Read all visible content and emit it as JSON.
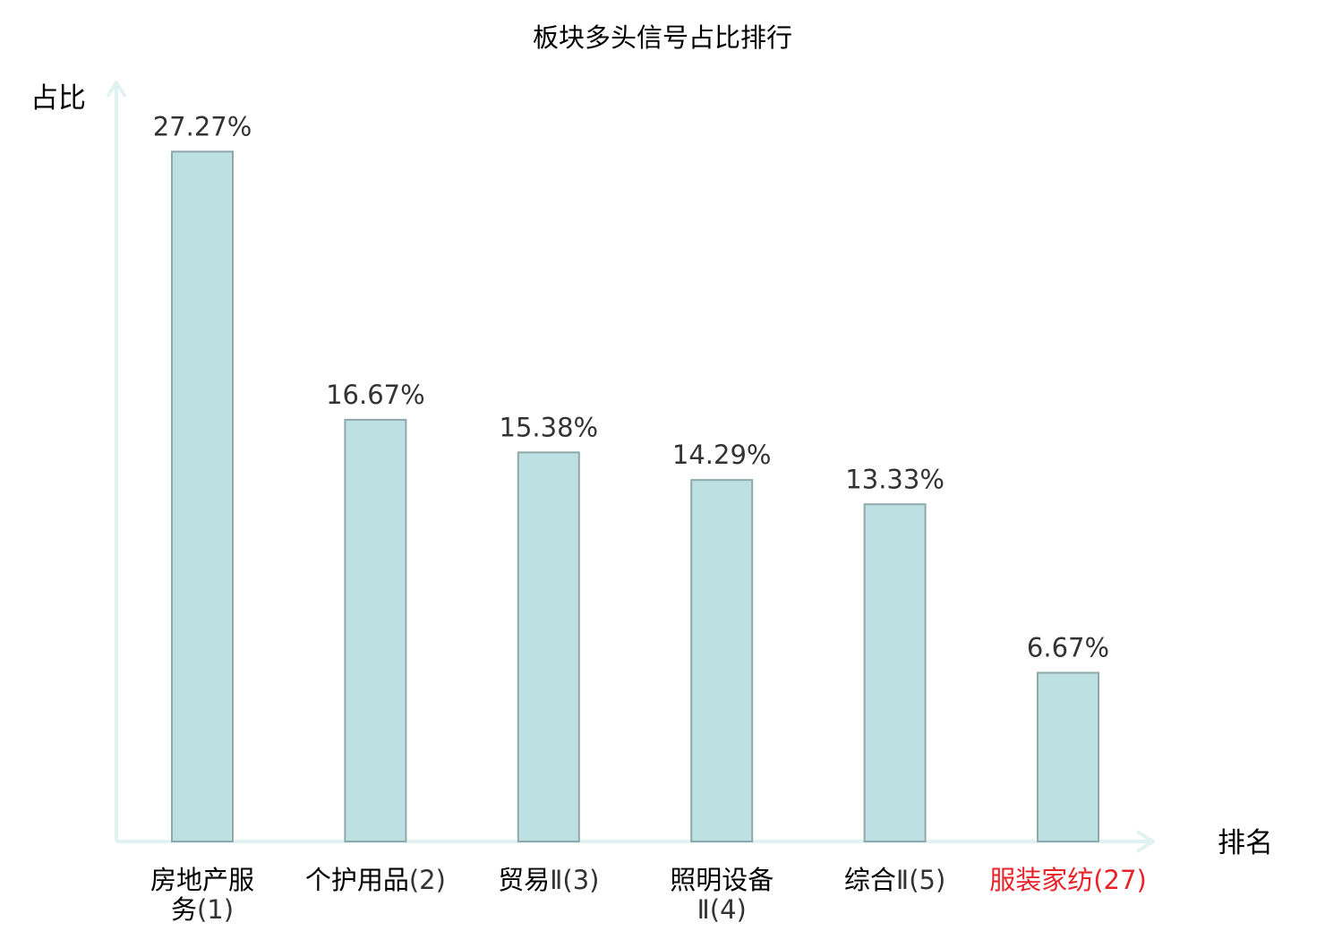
{
  "chart_data": {
    "type": "bar",
    "title": "板块多头信号占比排行",
    "xlabel": "排名",
    "ylabel": "占比",
    "ylim": [
      0,
      30
    ],
    "grid": false,
    "categories": [
      {
        "name": "房地产服务",
        "rank": "(1)",
        "highlight": false
      },
      {
        "name": "个护用品",
        "rank": "(2)",
        "highlight": false
      },
      {
        "name": "贸易Ⅱ",
        "rank": "(3)",
        "highlight": false
      },
      {
        "name": "照明设备Ⅱ",
        "rank": "(4)",
        "highlight": false
      },
      {
        "name": "综合Ⅱ",
        "rank": "(5)",
        "highlight": false
      },
      {
        "name": "服装家纺",
        "rank": "(27)",
        "highlight": true
      }
    ],
    "values": [
      27.27,
      16.67,
      15.38,
      14.29,
      13.33,
      6.67
    ],
    "value_labels": [
      "27.27%",
      "16.67%",
      "15.38%",
      "14.29%",
      "13.33%",
      "6.67%"
    ]
  },
  "colors": {
    "bar_fill": "#bde0e2",
    "bar_stroke": "#8fa8aa",
    "axis": "#e1f3f1",
    "highlight": "#e8232a",
    "name_text": "#000000",
    "rank_text": "#333333",
    "value_text": "#333333"
  }
}
